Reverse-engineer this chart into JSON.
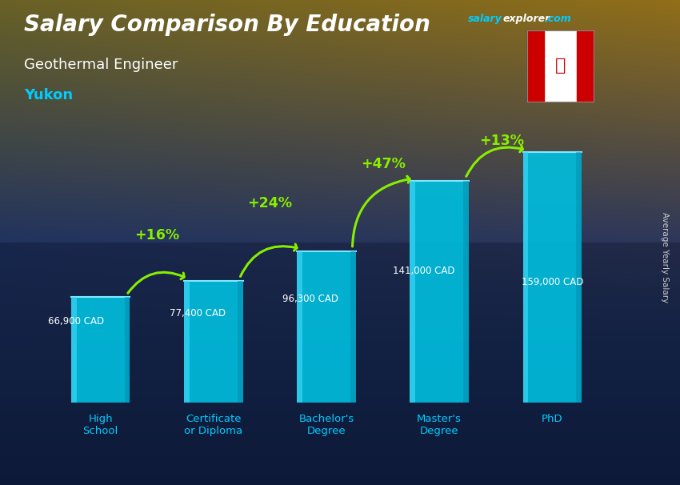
{
  "title_main": "Salary Comparison By Education",
  "subtitle_job": "Geothermal Engineer",
  "subtitle_location": "Yukon",
  "ylabel": "Average Yearly Salary",
  "categories": [
    "High\nSchool",
    "Certificate\nor Diploma",
    "Bachelor's\nDegree",
    "Master's\nDegree",
    "PhD"
  ],
  "values": [
    66900,
    77400,
    96300,
    141000,
    159000
  ],
  "value_labels": [
    "66,900 CAD",
    "77,400 CAD",
    "96,300 CAD",
    "141,000 CAD",
    "159,000 CAD"
  ],
  "pct_labels": [
    "+16%",
    "+24%",
    "+47%",
    "+13%"
  ],
  "bar_color": "#00bfdf",
  "bar_edge_light": "#80e8ff",
  "bar_left_highlight": "#40d8f8",
  "bg_top": "#0d1f3c",
  "bg_bottom": "#1a3060",
  "arrow_color": "#88ee00",
  "pct_color": "#88ee00",
  "value_color": "#ffffff",
  "title_color": "#ffffff",
  "job_color": "#ffffff",
  "location_color": "#00ccff",
  "xticklabel_color": "#00ccff",
  "salary_word_color": "#00ccff",
  "explorer_word_color": "#ffffff",
  "com_color": "#00ccff",
  "ylabel_color": "#cccccc",
  "max_val": 185000,
  "bar_width": 0.52
}
